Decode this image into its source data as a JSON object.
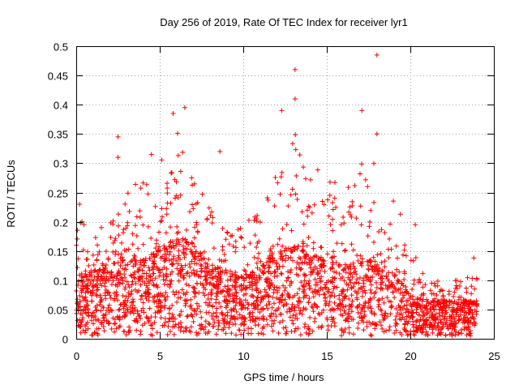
{
  "chart_data": {
    "type": "scatter",
    "title": "Day 256 of 2019, Rate Of TEC Index for receiver lyr1",
    "xlabel": "GPS time / hours",
    "ylabel": "ROTI / TECUs",
    "xlim": [
      0,
      25
    ],
    "ylim": [
      0,
      0.5
    ],
    "xticks": [
      "0",
      "5",
      "10",
      "15",
      "20",
      "25"
    ],
    "yticks": [
      "0",
      "0.05",
      "0.1",
      "0.15",
      "0.2",
      "0.25",
      "0.3",
      "0.35",
      "0.4",
      "0.45",
      "0.5"
    ],
    "grid": true,
    "marker": "+",
    "color": "#ff0000",
    "notable_points": [
      {
        "x": 0.2,
        "y": 0.23
      },
      {
        "x": 2.5,
        "y": 0.345
      },
      {
        "x": 2.5,
        "y": 0.31
      },
      {
        "x": 4.5,
        "y": 0.315
      },
      {
        "x": 5.8,
        "y": 0.385
      },
      {
        "x": 6.5,
        "y": 0.395
      },
      {
        "x": 8.6,
        "y": 0.32
      },
      {
        "x": 12.3,
        "y": 0.39
      },
      {
        "x": 13.1,
        "y": 0.46
      },
      {
        "x": 13.1,
        "y": 0.41
      },
      {
        "x": 17.1,
        "y": 0.39
      },
      {
        "x": 18.0,
        "y": 0.485
      },
      {
        "x": 18.0,
        "y": 0.35
      },
      {
        "x": 20.3,
        "y": 0.195
      },
      {
        "x": 23.8,
        "y": 0.138
      }
    ],
    "envelope": {
      "hours": [
        0,
        1,
        2,
        3,
        4,
        5,
        6,
        7,
        8,
        9,
        10,
        11,
        12,
        13,
        14,
        15,
        16,
        17,
        18,
        19,
        20,
        21,
        22,
        23,
        24
      ],
      "dense_upper": [
        0.1,
        0.11,
        0.12,
        0.14,
        0.13,
        0.15,
        0.17,
        0.16,
        0.12,
        0.11,
        0.1,
        0.12,
        0.14,
        0.16,
        0.14,
        0.13,
        0.12,
        0.13,
        0.13,
        0.11,
        0.07,
        0.06,
        0.06,
        0.06,
        0.06
      ],
      "sparse_upper": [
        0.22,
        0.18,
        0.2,
        0.26,
        0.28,
        0.3,
        0.36,
        0.27,
        0.24,
        0.2,
        0.2,
        0.24,
        0.28,
        0.36,
        0.3,
        0.28,
        0.26,
        0.3,
        0.3,
        0.24,
        0.18,
        0.1,
        0.1,
        0.1,
        0.12
      ]
    }
  }
}
